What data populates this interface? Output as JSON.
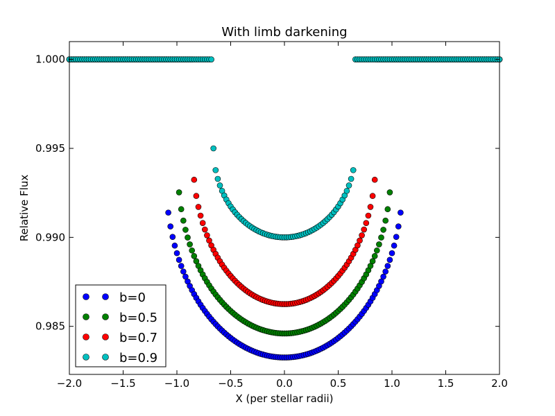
{
  "chart_data": {
    "type": "scatter",
    "title": "With limb darkening",
    "xlabel": "X (per stellar radii)",
    "ylabel": "Relative Flux",
    "xlim": [
      -2.0,
      2.0
    ],
    "ylim": [
      0.9823,
      1.001
    ],
    "x_ticks": [
      "−2.0",
      "−1.5",
      "−1.0",
      "−0.5",
      "0.0",
      "0.5",
      "1.0",
      "1.5",
      "2.0"
    ],
    "y_ticks": [
      "0.985",
      "0.990",
      "0.995",
      "1.000"
    ],
    "x_tick_values": [
      -2.0,
      -1.5,
      -1.0,
      -0.5,
      0.0,
      0.5,
      1.0,
      1.5,
      2.0
    ],
    "y_tick_values": [
      0.985,
      0.99,
      0.995,
      1.0
    ],
    "grid": false,
    "legend_position": "lower-left",
    "x_step": 0.02,
    "series": [
      {
        "name": "b=0",
        "color": "#0000ff",
        "depth": 0.01675,
        "half_width": 1.1,
        "limb": 0.6
      },
      {
        "name": "b=0.5",
        "color": "#008000",
        "depth": 0.0154,
        "half_width": 0.99,
        "limb": 0.6
      },
      {
        "name": "b=0.7",
        "color": "#ff0000",
        "depth": 0.01375,
        "half_width": 0.85,
        "limb": 0.6
      },
      {
        "name": "b=0.9",
        "color": "#00bfbf",
        "depth": 0.01,
        "half_width": 0.66,
        "limb": 0.5
      }
    ]
  }
}
